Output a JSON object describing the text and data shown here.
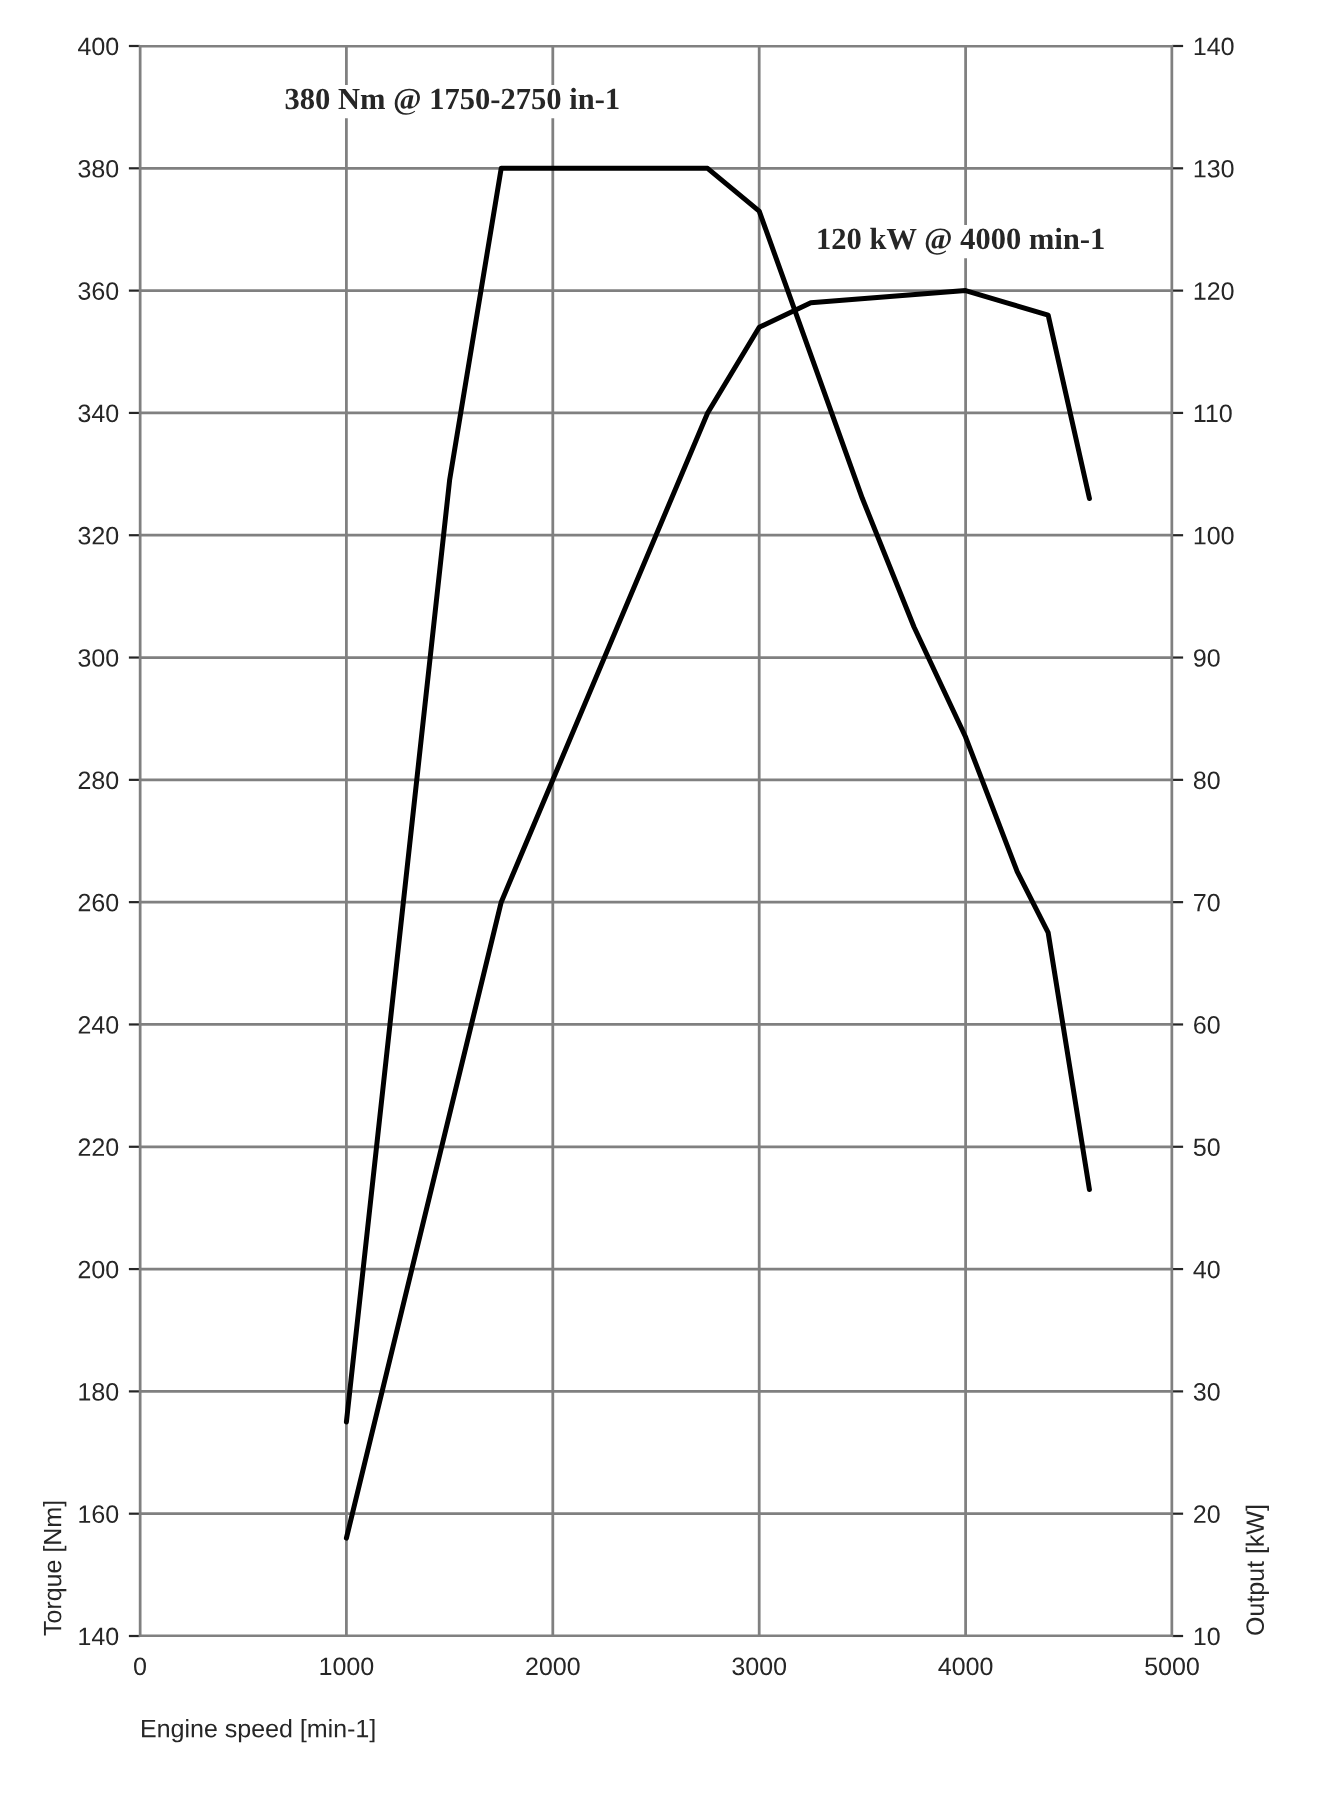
{
  "chart_data": {
    "type": "line",
    "xlabel": "Engine speed [min-1]",
    "ylabel": "Torque [Nm]",
    "y2label": "Output [kW]",
    "annotations": [
      "380 Nm @ 1750-2750 in-1",
      "120 kW @ 4000 min-1"
    ],
    "series": [
      {
        "color": "#000000",
        "x": [
          1000,
          1500,
          1750,
          2750,
          3000,
          3500,
          3750,
          4000,
          4250,
          4400,
          4600
        ],
        "values": [
          175,
          329,
          380,
          380,
          373,
          326,
          305,
          287,
          265,
          255,
          213
        ]
      },
      {
        "color": "#000000",
        "axis": "y2",
        "x": [
          1000,
          1750,
          2750,
          3000,
          3250,
          4000,
          4200,
          4400,
          4600
        ],
        "values": [
          18,
          70,
          110,
          117,
          119,
          120,
          119,
          118,
          103
        ]
      }
    ],
    "xlim": [
      0,
      5000
    ],
    "xticks": [
      0,
      1000,
      2000,
      3000,
      4000,
      5000
    ],
    "ylim": [
      140,
      400
    ],
    "yticks": [
      140,
      160,
      180,
      200,
      220,
      240,
      260,
      280,
      300,
      320,
      340,
      360,
      380,
      400
    ],
    "y2lim": [
      10,
      140
    ],
    "y2ticks": [
      10,
      20,
      30,
      40,
      50,
      60,
      70,
      80,
      90,
      100,
      110,
      120,
      130,
      140
    ],
    "grid": true,
    "marker": "none",
    "line_style": "solid"
  }
}
